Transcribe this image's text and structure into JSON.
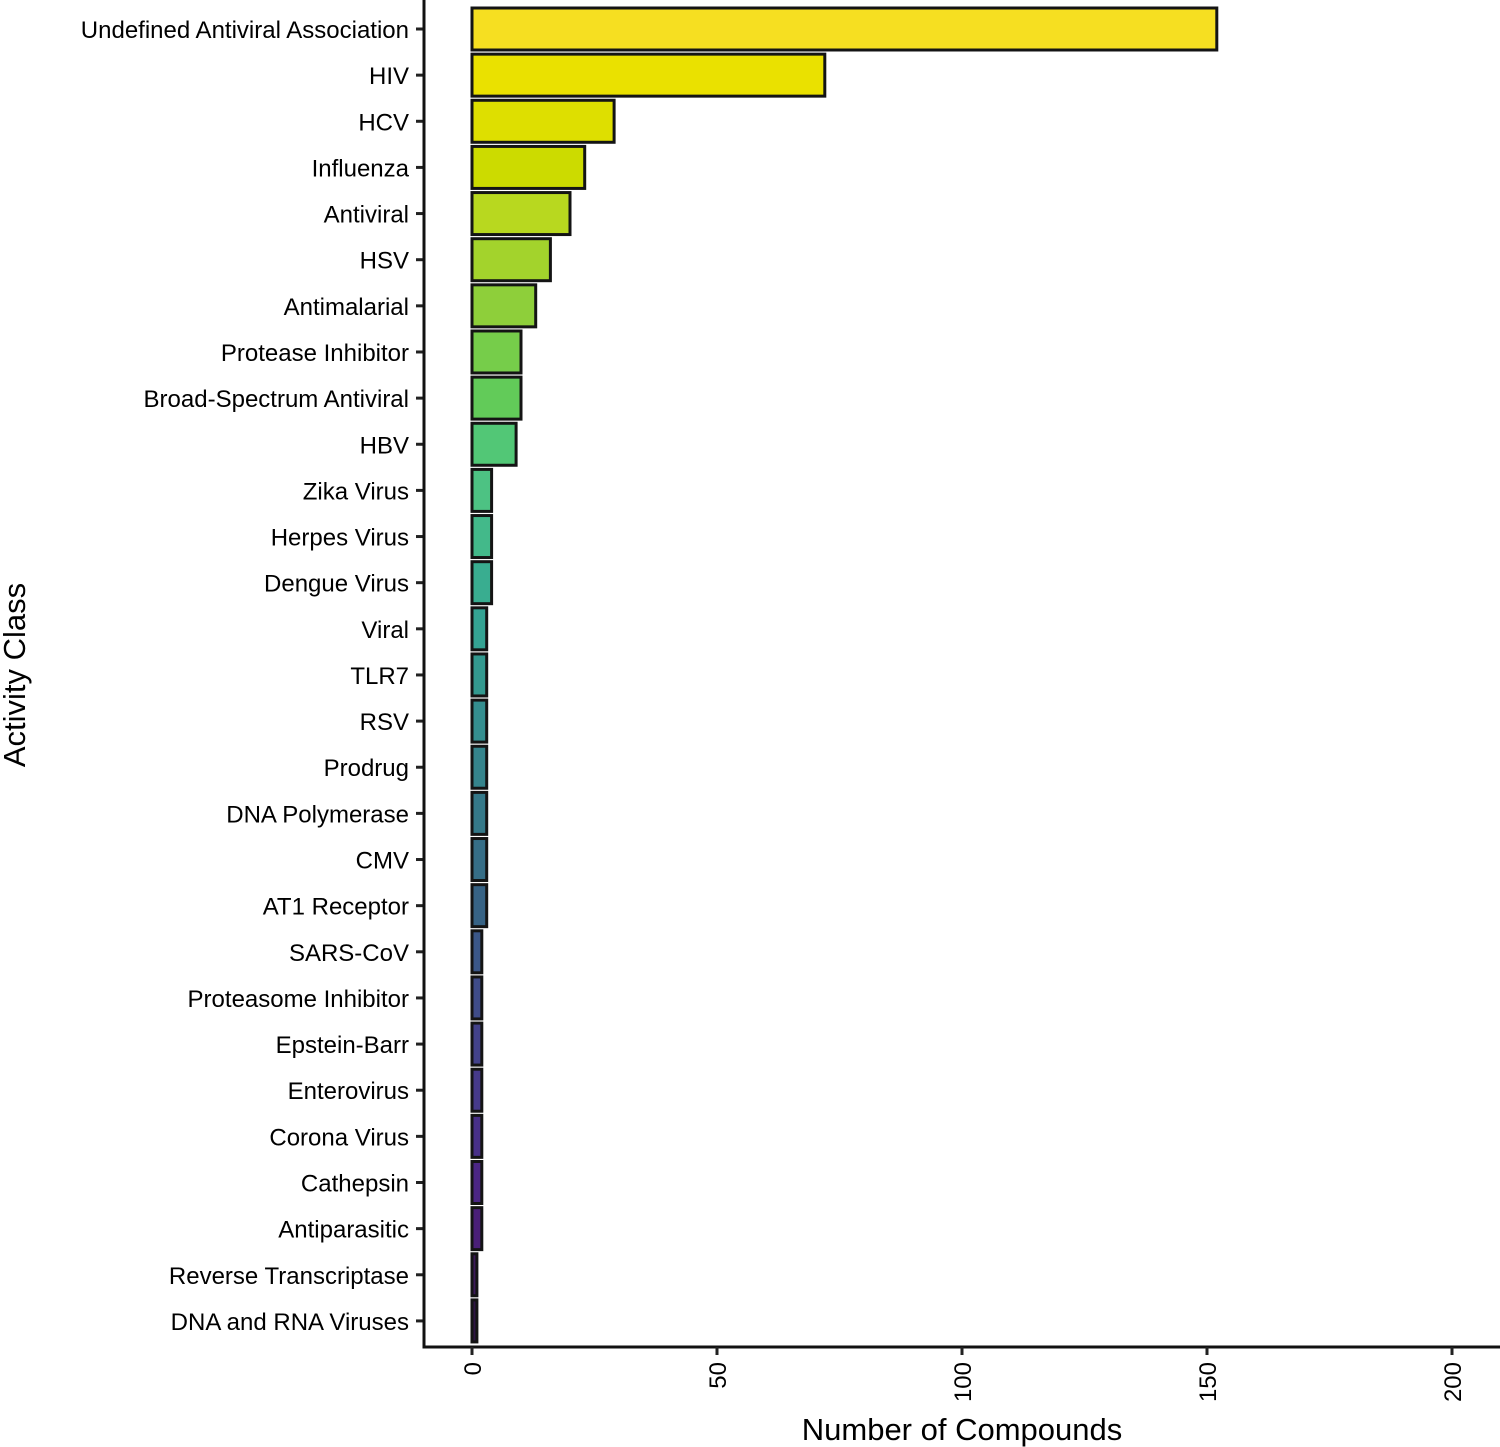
{
  "chart_data": {
    "type": "bar",
    "orientation": "horizontal",
    "title": "",
    "xlabel": "Number of Compounds",
    "ylabel": "Activity Class",
    "xlim": [
      0,
      210
    ],
    "xticks": [
      0,
      50,
      100,
      150,
      200
    ],
    "xtick_labels": [
      "0",
      "50",
      "100",
      "150",
      "200"
    ],
    "grid": false,
    "legend": "none",
    "categories": [
      "Undefined Antiviral Association",
      "HIV",
      "HCV",
      "Influenza",
      "Antiviral",
      "HSV",
      "Antimalarial",
      "Protease Inhibitor",
      "Broad-Spectrum Antiviral",
      "HBV",
      "Zika Virus",
      "Herpes Virus",
      "Dengue Virus",
      "Viral",
      "TLR7",
      "RSV",
      "Prodrug",
      "DNA Polymerase",
      "CMV",
      "AT1 Receptor",
      "SARS-CoV",
      "Proteasome Inhibitor",
      "Epstein-Barr",
      "Enterovirus",
      "Corona Virus",
      "Cathepsin",
      "Antiparasitic",
      "Reverse Transcriptase",
      "DNA and RNA Viruses"
    ],
    "values": [
      152,
      72,
      29,
      23,
      20,
      16,
      13,
      10,
      10,
      9,
      4,
      4,
      4,
      3,
      3,
      3,
      3,
      3,
      3,
      3,
      2,
      2,
      2,
      2,
      2,
      2,
      2,
      1,
      1
    ],
    "colors": [
      "#f6df21",
      "#eae100",
      "#dedf00",
      "#ccdb00",
      "#b8d81f",
      "#a3d32c",
      "#8ecf3a",
      "#76cd4a",
      "#62cb59",
      "#52c776",
      "#4dc283",
      "#43b98a",
      "#39ad90",
      "#34a393",
      "#33998f",
      "#348e8f",
      "#35848c",
      "#357989",
      "#366e87",
      "#376385",
      "#3b5788",
      "#3f4c89",
      "#43428a",
      "#463a8a",
      "#483088",
      "#4b2684",
      "#4a1f78",
      "#3d1a5a",
      "#2f1545"
    ],
    "bar_outline_color": "#141414"
  }
}
